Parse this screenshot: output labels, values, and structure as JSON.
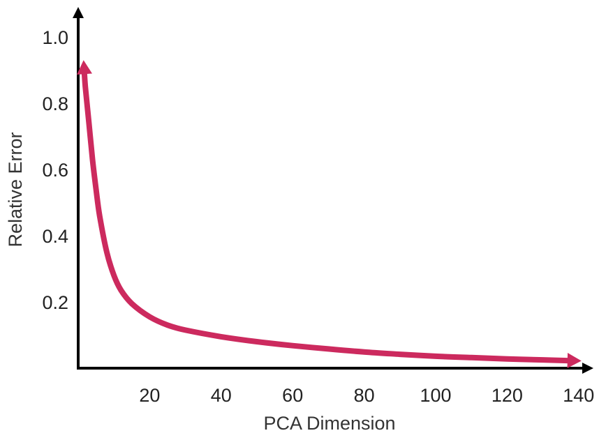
{
  "chart_data": {
    "type": "line",
    "title": "",
    "xlabel": "PCA Dimension",
    "ylabel": "Relative Error",
    "xlim": [
      0,
      140
    ],
    "ylim": [
      0,
      1.0
    ],
    "x_ticks": [
      20,
      40,
      60,
      80,
      100,
      120,
      140
    ],
    "x_tick_labels": [
      "20",
      "40",
      "60",
      "80",
      "100",
      "120",
      "140"
    ],
    "y_ticks": [
      0.2,
      0.4,
      0.6,
      0.8,
      1.0
    ],
    "y_tick_labels": [
      "0.2",
      "0.4",
      "0.6",
      "0.8",
      "1.0"
    ],
    "grid": false,
    "legend": "none",
    "series": [
      {
        "color": "#cc2a5e",
        "x": [
          1.5,
          2,
          3,
          4,
          5,
          6,
          8,
          10,
          12,
          15,
          20,
          25,
          30,
          40,
          50,
          60,
          70,
          80,
          90,
          100,
          110,
          120,
          130,
          140
        ],
        "y": [
          0.93,
          0.85,
          0.74,
          0.63,
          0.54,
          0.46,
          0.35,
          0.28,
          0.235,
          0.195,
          0.155,
          0.13,
          0.115,
          0.095,
          0.08,
          0.068,
          0.058,
          0.049,
          0.042,
          0.036,
          0.032,
          0.028,
          0.025,
          0.022
        ]
      }
    ]
  }
}
